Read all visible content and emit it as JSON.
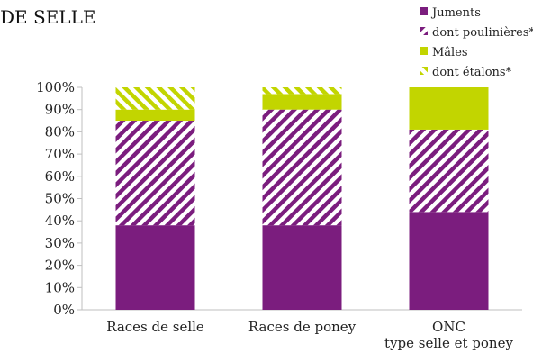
{
  "chart_data": {
    "type": "bar",
    "stacked": true,
    "title": "DE SELLE",
    "categories": [
      "Races de selle",
      "Races de poney",
      "ONC\ntype selle et poney"
    ],
    "ylim": [
      0,
      100
    ],
    "y_ticks": [
      "0%",
      "10%",
      "20%",
      "30%",
      "40%",
      "50%",
      "60%",
      "70%",
      "80%",
      "90%",
      "100%"
    ],
    "legend_position": "top-right",
    "series": [
      {
        "name": "Juments",
        "values": [
          38,
          38,
          44
        ],
        "color": "#7b1d7e",
        "pattern": "solid"
      },
      {
        "name": "dont poulinières*",
        "values": [
          47,
          52,
          37
        ],
        "color": "#7b1d7e",
        "pattern": "hatch"
      },
      {
        "name": "Mâles",
        "values": [
          5,
          7,
          19
        ],
        "color": "#c2d500",
        "pattern": "solid"
      },
      {
        "name": "dont étalons*",
        "values": [
          10,
          3,
          0
        ],
        "color": "#c2d500",
        "pattern": "hatch"
      }
    ]
  }
}
